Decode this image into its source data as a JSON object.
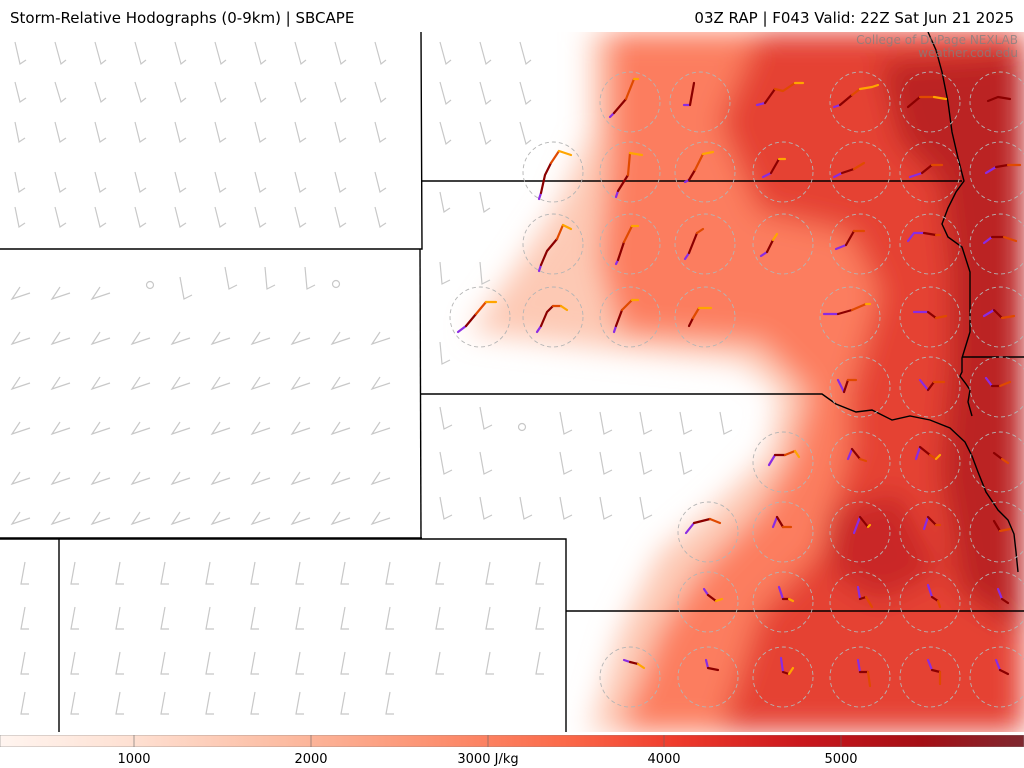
{
  "header": {
    "title_left": "Storm-Relative Hodographs (0-9km) | SBCAPE",
    "title_right": "03Z RAP | F043 Valid: 22Z Sat Jun 21 2025"
  },
  "credit": {
    "line1": "College of DuPage NEXLAB",
    "line2": "weather.cod.edu"
  },
  "colorbar": {
    "ticks": [
      "1000",
      "2000",
      "3000 J/kg",
      "4000",
      "5000"
    ],
    "colors": [
      "#fff5f0",
      "#fee0d2",
      "#fcbba1",
      "#fc9272",
      "#fb6a4a",
      "#ef3b2c",
      "#cb181d",
      "#a50f15",
      "#7f2830"
    ]
  },
  "map_legend": {
    "hodo_colors": {
      "0-1km": "#8a2be2",
      "1-3km": "#8b0000",
      "3-6km": "#e04a00",
      "6-9km": "#ffa500"
    },
    "barb_color": "#c8c8c8",
    "state_border_color": "#000000"
  }
}
